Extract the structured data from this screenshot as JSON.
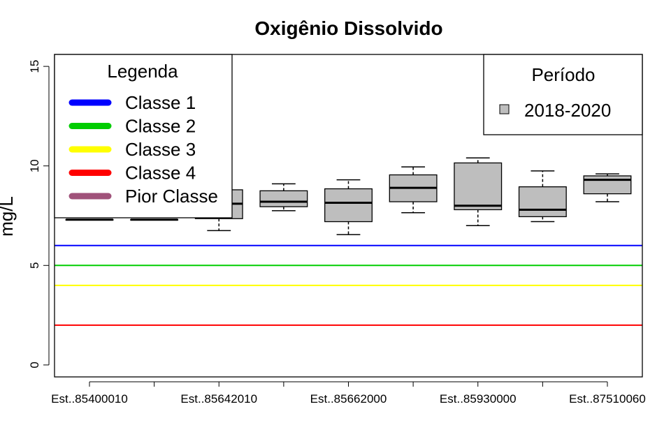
{
  "chart_data": {
    "type": "boxplot",
    "title": "Oxigênio Dissolvido",
    "ylabel": "mg/L",
    "ylim": [
      -0.6,
      15.6
    ],
    "yticks": [
      0,
      5,
      10,
      15
    ],
    "xtick_labels": [
      "Est..85400010",
      "Est..85642010",
      "Est..85662000",
      "Est..85930000",
      "Est..87510060"
    ],
    "boxes": [
      {
        "min": 7.3,
        "q1": 7.3,
        "median": 7.3,
        "q3": 7.3,
        "max": 7.3
      },
      {
        "min": 7.3,
        "q1": 7.3,
        "median": 7.3,
        "q3": 7.3,
        "max": 7.3
      },
      {
        "min": 6.75,
        "q1": 7.35,
        "median": 8.1,
        "q3": 8.8,
        "max": 9.2
      },
      {
        "min": 7.75,
        "q1": 7.95,
        "median": 8.2,
        "q3": 8.75,
        "max": 9.1
      },
      {
        "min": 6.55,
        "q1": 7.2,
        "median": 8.15,
        "q3": 8.85,
        "max": 9.3
      },
      {
        "min": 7.65,
        "q1": 8.2,
        "median": 8.9,
        "q3": 9.55,
        "max": 9.95
      },
      {
        "min": 7.0,
        "q1": 7.8,
        "median": 8.0,
        "q3": 10.15,
        "max": 10.4
      },
      {
        "min": 7.2,
        "q1": 7.45,
        "median": 7.8,
        "q3": 8.95,
        "max": 9.75
      },
      {
        "min": 8.2,
        "q1": 8.6,
        "median": 9.3,
        "q3": 9.5,
        "max": 9.6
      }
    ],
    "reference_lines": [
      {
        "name": "Classe 1",
        "value": 6,
        "color": "#0000ff"
      },
      {
        "name": "Classe 2",
        "value": 5,
        "color": "#00cd00"
      },
      {
        "name": "Classe 3",
        "value": 4,
        "color": "#ffff00"
      },
      {
        "name": "Classe 4",
        "value": 2,
        "color": "#ff0000"
      }
    ],
    "box_fill": "#bebebe",
    "legend_classes": {
      "title": "Legenda",
      "placement": "top-left",
      "items": [
        {
          "label": "Classe 1",
          "color": "#0000ff"
        },
        {
          "label": "Classe 2",
          "color": "#00cd00"
        },
        {
          "label": "Classe 3",
          "color": "#ffff00"
        },
        {
          "label": "Classe 4",
          "color": "#ff0000"
        },
        {
          "label": "Pior Classe",
          "color": "#a0527a"
        }
      ]
    },
    "legend_period": {
      "title": "Período",
      "placement": "top-right",
      "items": [
        {
          "label": "2018-2020",
          "color": "#bebebe"
        }
      ]
    },
    "grid": false
  }
}
